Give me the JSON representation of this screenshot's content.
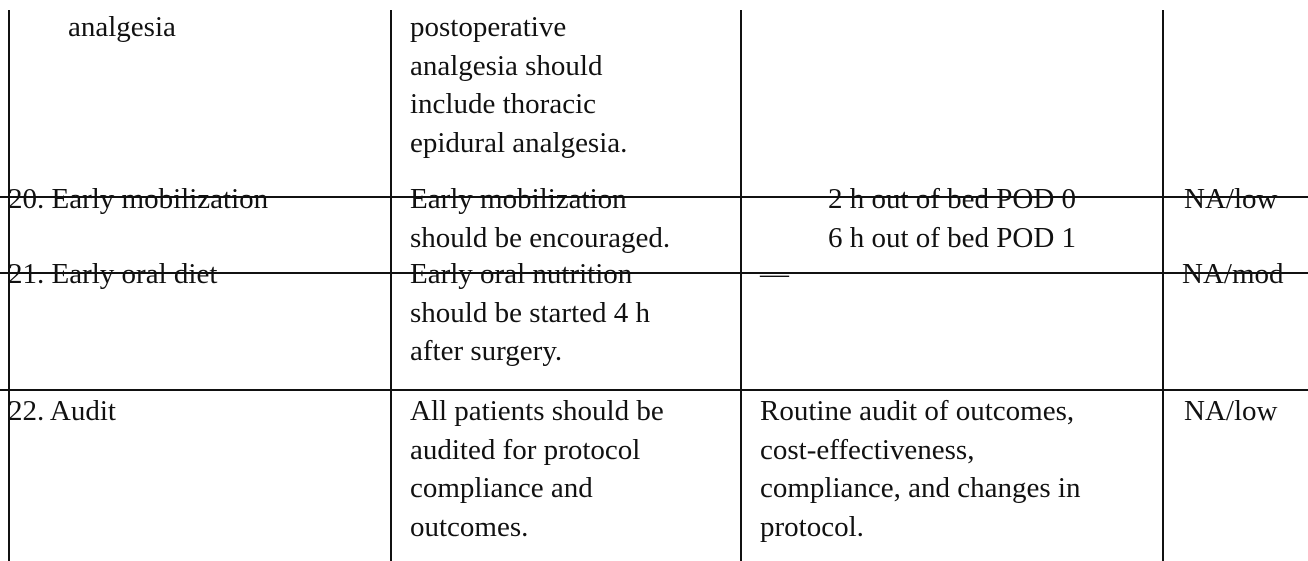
{
  "table": {
    "rows": [
      {
        "item": "analgesia",
        "recommendation": [
          "postoperative",
          "analgesia should",
          "include thoracic",
          "epidural analgesia."
        ],
        "detail": [],
        "evidence": ""
      },
      {
        "item": "20. Early mobilization",
        "recommendation": [
          "Early mobilization",
          "should be encouraged."
        ],
        "detail": [
          "2 h out of bed POD 0",
          "6 h out of bed POD 1"
        ],
        "evidence": "NA/low"
      },
      {
        "item": "21. Early oral diet",
        "recommendation": [
          "Early oral nutrition",
          "should be started 4 h",
          "after surgery."
        ],
        "detail": [
          "—"
        ],
        "evidence": "NA/mod"
      },
      {
        "item": "22. Audit",
        "recommendation": [
          "All patients should be",
          "audited for protocol",
          "compliance and",
          "outcomes."
        ],
        "detail": [
          "Routine audit of outcomes,",
          "cost-effectiveness,",
          "compliance, and changes in",
          "protocol."
        ],
        "evidence": "NA/low"
      }
    ]
  }
}
